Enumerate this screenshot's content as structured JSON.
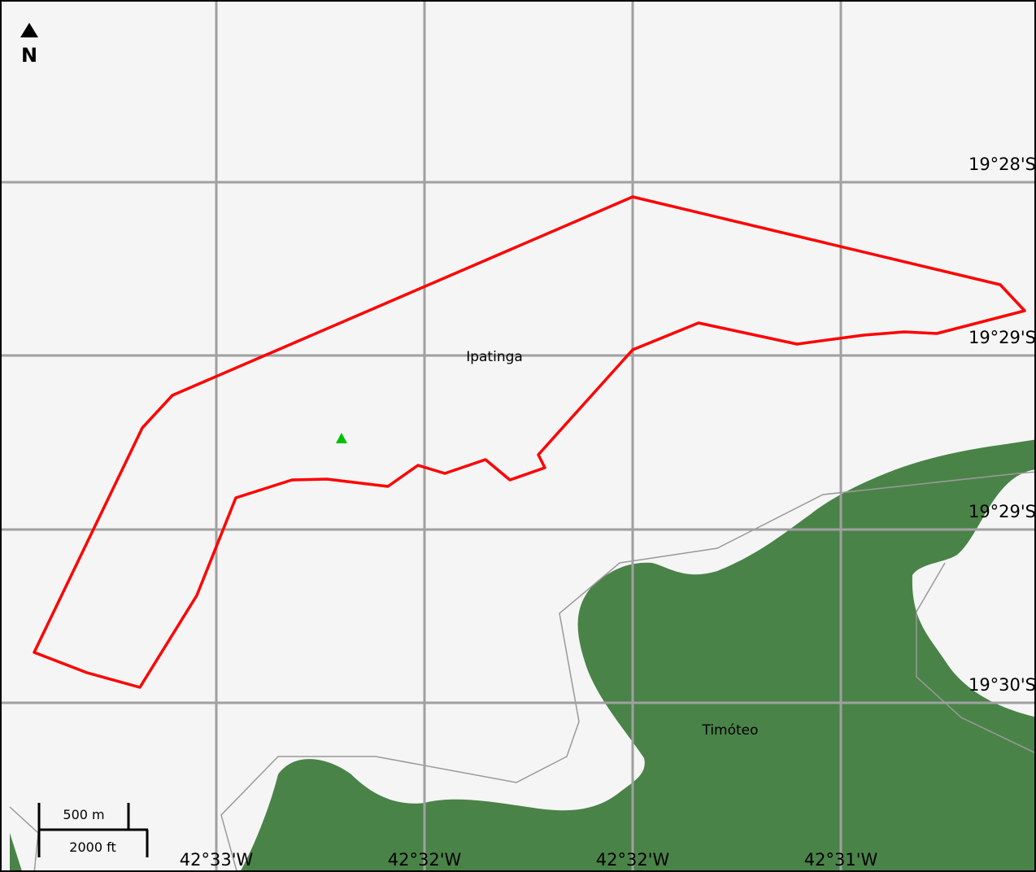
{
  "north_arrow": {
    "icon": "north-arrow-icon",
    "label": "N"
  },
  "latitude_labels": [
    "19°28'S",
    "19°29'S",
    "19°29'S",
    "19°30'S"
  ],
  "longitude_labels": [
    "42°33'W",
    "42°32'W",
    "42°32'W",
    "42°31'W"
  ],
  "places": {
    "ipatinga": "Ipatinga",
    "timoteo": "Timóteo"
  },
  "scale_bar": {
    "metric": "500 m",
    "imperial": "2000 ft"
  },
  "marker": {
    "icon": "triangle-marker-icon",
    "color": "#00c000"
  },
  "colors": {
    "boundary": "#ff0000",
    "forest": "#4a8348",
    "background": "#f5f5f5",
    "grid": "#a0a0a0"
  }
}
